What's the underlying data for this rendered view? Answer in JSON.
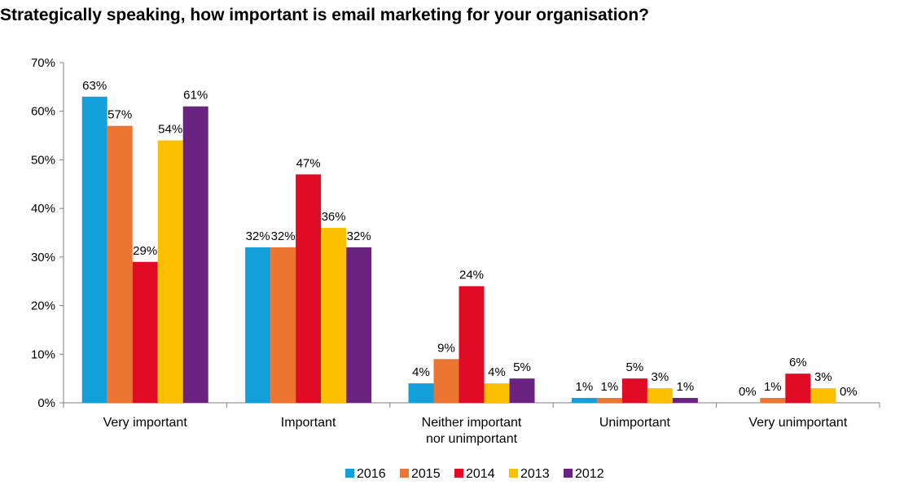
{
  "chart_data": {
    "type": "bar",
    "title": "Strategically speaking, how important is email marketing for your organisation?",
    "categories": [
      [
        "Very important"
      ],
      [
        "Important"
      ],
      [
        "Neither important",
        "nor unimportant"
      ],
      [
        "Unimportant"
      ],
      [
        "Very unimportant"
      ]
    ],
    "series": [
      {
        "name": "2016",
        "color": "#139fd9",
        "values": [
          63,
          32,
          4,
          1,
          0
        ],
        "labels": [
          "63%",
          "32%",
          "4%",
          "1%",
          "0%"
        ]
      },
      {
        "name": "2015",
        "color": "#ed7532",
        "values": [
          57,
          32,
          9,
          1,
          1
        ],
        "labels": [
          "57%",
          "32%",
          "9%",
          "1%",
          "1%"
        ]
      },
      {
        "name": "2014",
        "color": "#e20b26",
        "values": [
          29,
          47,
          24,
          5,
          6
        ],
        "labels": [
          "29%",
          "47%",
          "24%",
          "5%",
          "6%"
        ]
      },
      {
        "name": "2013",
        "color": "#fcc000",
        "values": [
          54,
          36,
          4,
          3,
          3
        ],
        "labels": [
          "54%",
          "36%",
          "4%",
          "3%",
          "3%"
        ]
      },
      {
        "name": "2012",
        "color": "#6b2381",
        "values": [
          61,
          32,
          5,
          1,
          0
        ],
        "labels": [
          "61%",
          "32%",
          "5%",
          "1%",
          "0%"
        ]
      }
    ],
    "yticks": [
      "0%",
      "10%",
      "20%",
      "30%",
      "40%",
      "50%",
      "60%",
      "70%"
    ],
    "ylim": [
      0,
      70
    ],
    "grid": false,
    "legend_position": "bottom"
  }
}
